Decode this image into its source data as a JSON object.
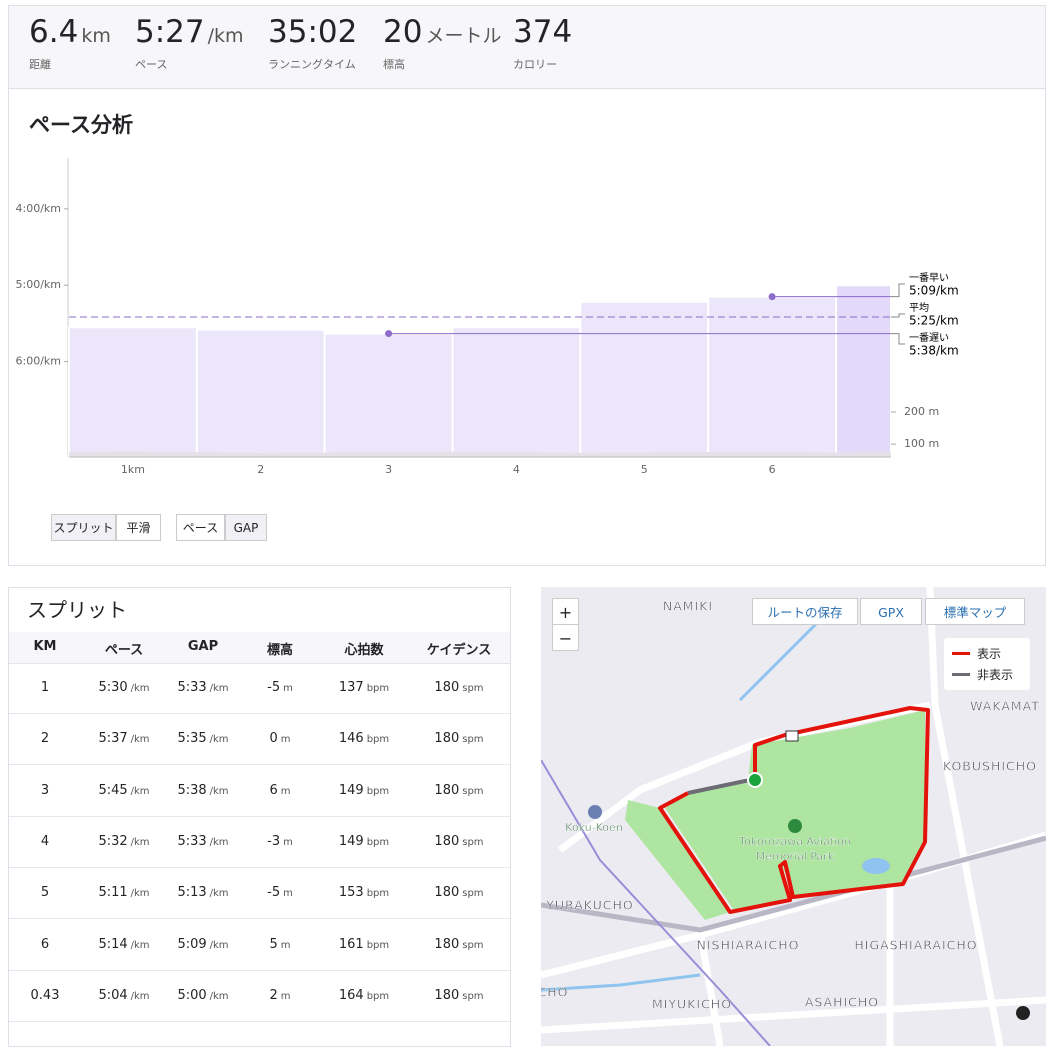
{
  "stats": [
    {
      "value": "6.4",
      "unit": "km",
      "label": "距離"
    },
    {
      "value": "5:27",
      "unit": "/km",
      "label": "ペース"
    },
    {
      "value": "35:02",
      "label": "ランニングタイム"
    },
    {
      "value": "20",
      "unit": "メートル",
      "label": "標高"
    },
    {
      "value": "374",
      "label": "カロリー"
    }
  ],
  "chart_data": {
    "type": "bar",
    "title": "ペース分析",
    "categories": [
      "1km",
      "2",
      "3",
      "4",
      "5",
      "6",
      null
    ],
    "values": [
      333,
      335,
      338,
      333,
      313,
      309,
      300
    ],
    "bar_widths": [
      1,
      1,
      1,
      1,
      1,
      1,
      0.43
    ],
    "color": "#ece6fb",
    "highlight_color": "#e3d9f8",
    "line_color": "#8b6cca",
    "xlim": [
      0,
      6.43
    ],
    "ylim": [
      435,
      200
    ],
    "yticks": [
      {
        "value": 240,
        "label": "4:00/km"
      },
      {
        "value": 300,
        "label": "5:00/km"
      },
      {
        "value": 360,
        "label": "6:00/km"
      }
    ],
    "elevation_x": [
      0,
      0.5,
      1,
      1.5,
      2,
      2.5,
      3,
      3.5,
      4,
      4.5,
      5,
      5.5,
      6,
      6.43
    ],
    "elevation": [
      76,
      78,
      75,
      73,
      74,
      76,
      77,
      75,
      73,
      74,
      76,
      75,
      74,
      75
    ],
    "elevation_color": "#e4e2e8",
    "y2lim": [
      60,
      990
    ],
    "y2ticks": [
      {
        "value": 200,
        "label": "200 m"
      },
      {
        "value": 100,
        "label": "100 m"
      }
    ],
    "annotations": [
      {
        "label": "一番早い",
        "value": 309,
        "value_label": "5:09/km"
      },
      {
        "label": "平均",
        "value": 325,
        "value_label": "5:25/km"
      },
      {
        "label": "一番遅い",
        "value": 338,
        "value_label": "5:38/km"
      }
    ]
  },
  "chart_controls": [
    [
      "スプリット",
      "平滑"
    ],
    [
      "ペース",
      "GAP"
    ]
  ],
  "splits": {
    "title": "スプリット",
    "columns": [
      {
        "name": "KM"
      },
      {
        "name": "ペース",
        "unit": "/km"
      },
      {
        "name": "GAP",
        "unit": "/km"
      },
      {
        "name": "標高",
        "unit": "m"
      },
      {
        "name": "心拍数",
        "unit": "bpm"
      },
      {
        "name": "ケイデンス",
        "unit": "spm"
      }
    ],
    "rows": [
      [
        "1",
        "5:30",
        "5:33",
        "-5",
        "137",
        "180"
      ],
      [
        "2",
        "5:37",
        "5:35",
        "0",
        "146",
        "180"
      ],
      [
        "3",
        "5:45",
        "5:38",
        "6",
        "149",
        "180"
      ],
      [
        "4",
        "5:32",
        "5:33",
        "-3",
        "149",
        "180"
      ],
      [
        "5",
        "5:11",
        "5:13",
        "-5",
        "153",
        "180"
      ],
      [
        "6",
        "5:14",
        "5:09",
        "5",
        "161",
        "180"
      ],
      [
        "0.43",
        "5:04",
        "5:00",
        "2",
        "164",
        "180"
      ]
    ]
  },
  "map": {
    "zoom": [
      "+",
      "−"
    ],
    "toolbar": [
      "ルートの保存",
      "GPX",
      "標準マップ"
    ],
    "legend": [
      "表示",
      "非表示"
    ],
    "places": [
      "NAMIKI",
      "WAKAMAT",
      "KOBUSHICHO",
      "Koku-Koen",
      "Tokorozawa Aviation",
      "Memorial Park",
      "YURAKUCHO",
      "NISHIARAICHO",
      "HIGASHIARAICHO",
      "MIYUKICHO",
      "ASAHICHO",
      "CHO"
    ]
  }
}
